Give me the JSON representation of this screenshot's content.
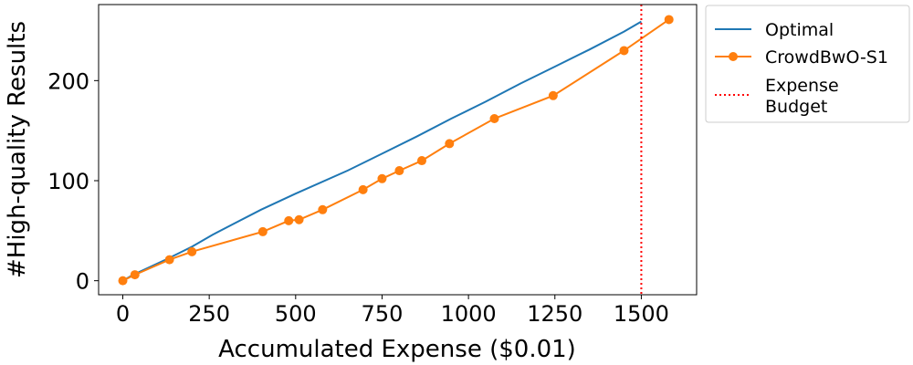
{
  "chart_data": {
    "type": "line",
    "xlabel": "Accumulated Expense ($0.01)",
    "ylabel": "#High-quality Results",
    "xlim": [
      -70,
      1660
    ],
    "ylim": [
      -14,
      276
    ],
    "xticks": [
      0,
      250,
      500,
      750,
      1000,
      1250,
      1500
    ],
    "yticks": [
      0,
      100,
      200
    ],
    "grid": false,
    "legend_position": "outside-right-top",
    "series": [
      {
        "name": "Optimal",
        "color": "#1f77b4",
        "marker": "none",
        "x": [
          0,
          30,
          130,
          200,
          260,
          400,
          500,
          650,
          750,
          850,
          950,
          1050,
          1150,
          1250,
          1350,
          1450,
          1500
        ],
        "y": [
          0,
          6,
          22,
          34,
          46,
          71,
          87,
          110,
          127,
          144,
          162,
          179,
          197,
          214,
          231,
          249,
          259
        ]
      },
      {
        "name": "CrowdBwO-S1",
        "color": "#ff7f0e",
        "marker": "circle",
        "x": [
          0,
          35,
          135,
          200,
          405,
          480,
          510,
          578,
          695,
          750,
          800,
          865,
          945,
          1075,
          1245,
          1450,
          1580
        ],
        "y": [
          0,
          6,
          21,
          29,
          49,
          60,
          61,
          71,
          91,
          102,
          110,
          120,
          137,
          162,
          185,
          230,
          261
        ]
      }
    ],
    "reference_lines": [
      {
        "name": "Expense Budget",
        "legend_lines": [
          "Expense",
          "Budget"
        ],
        "orientation": "vertical",
        "x": 1500,
        "color": "#ff0000",
        "style": "dotted"
      }
    ]
  }
}
